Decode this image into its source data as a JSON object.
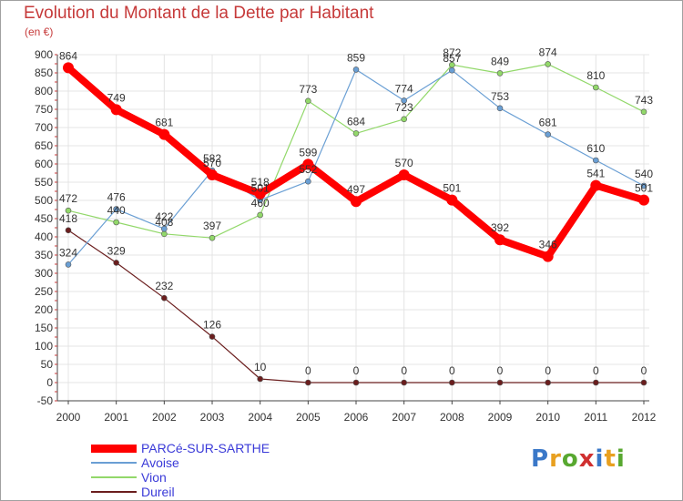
{
  "header": {
    "title": "Evolution du Montant de la Dette par Habitant",
    "subtitle": "(en €)"
  },
  "chart_data": {
    "type": "line",
    "x": [
      "2000",
      "2001",
      "2002",
      "2003",
      "2004",
      "2005",
      "2006",
      "2007",
      "2008",
      "2009",
      "2010",
      "2011",
      "2012"
    ],
    "ylim": [
      -50,
      900
    ],
    "yticks": [
      -50,
      0,
      50,
      100,
      150,
      200,
      250,
      300,
      350,
      400,
      450,
      500,
      550,
      600,
      650,
      700,
      750,
      800,
      850,
      900
    ],
    "grid": true,
    "legend_position": "bottom-left",
    "series": [
      {
        "name": "PARCé-SUR-SARTHE",
        "color": "#ff0000",
        "values": [
          864,
          749,
          681,
          570,
          518,
          599,
          497,
          570,
          501,
          392,
          346,
          541,
          501
        ]
      },
      {
        "name": "Avoise",
        "color": "#6a9fd4",
        "values": [
          324,
          476,
          422,
          582,
          501,
          552,
          859,
          774,
          857,
          753,
          681,
          610,
          540
        ]
      },
      {
        "name": "Vion",
        "color": "#92d86a",
        "values": [
          472,
          440,
          408,
          397,
          460,
          773,
          684,
          723,
          872,
          849,
          874,
          810,
          743
        ]
      },
      {
        "name": "Dureil",
        "color": "#6b1e1e",
        "values": [
          418,
          329,
          232,
          126,
          10,
          0,
          0,
          0,
          0,
          0,
          0,
          0,
          0
        ]
      }
    ]
  },
  "logo": {
    "letters": [
      "P",
      "r",
      "o",
      "x",
      "i",
      "t",
      "i"
    ],
    "colors": [
      "#3a78c8",
      "#e8a020",
      "#58a830",
      "#d03030",
      "#3a78c8",
      "#e8a020",
      "#58a830"
    ]
  }
}
